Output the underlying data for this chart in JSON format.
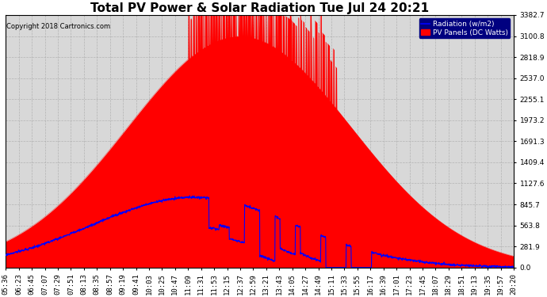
{
  "title": "Total PV Power & Solar Radiation Tue Jul 24 20:21",
  "copyright": "Copyright 2018 Cartronics.com",
  "legend_labels": [
    "Radiation (w/m2)",
    "PV Panels (DC Watts)"
  ],
  "yticks": [
    0.0,
    281.9,
    563.8,
    845.7,
    1127.6,
    1409.4,
    1691.3,
    1973.2,
    2255.1,
    2537.0,
    2818.9,
    3100.8,
    3382.7
  ],
  "ymax": 3382.7,
  "ymin": 0.0,
  "bg_color": "#ffffff",
  "plot_bg_color": "#d8d8d8",
  "grid_color": "#aaaaaa",
  "title_fontsize": 11,
  "tick_fontsize": 6.5,
  "xtick_labels": [
    "05:36",
    "06:23",
    "06:45",
    "07:07",
    "07:29",
    "07:51",
    "08:13",
    "08:35",
    "08:57",
    "09:19",
    "09:41",
    "10:03",
    "10:25",
    "10:47",
    "11:09",
    "11:31",
    "11:53",
    "12:15",
    "12:37",
    "12:59",
    "13:21",
    "13:43",
    "14:05",
    "14:27",
    "14:49",
    "15:11",
    "15:33",
    "15:55",
    "16:17",
    "16:39",
    "17:01",
    "17:23",
    "17:45",
    "18:07",
    "18:29",
    "18:51",
    "19:13",
    "19:35",
    "19:57",
    "20:20"
  ],
  "n_xticks": 40
}
